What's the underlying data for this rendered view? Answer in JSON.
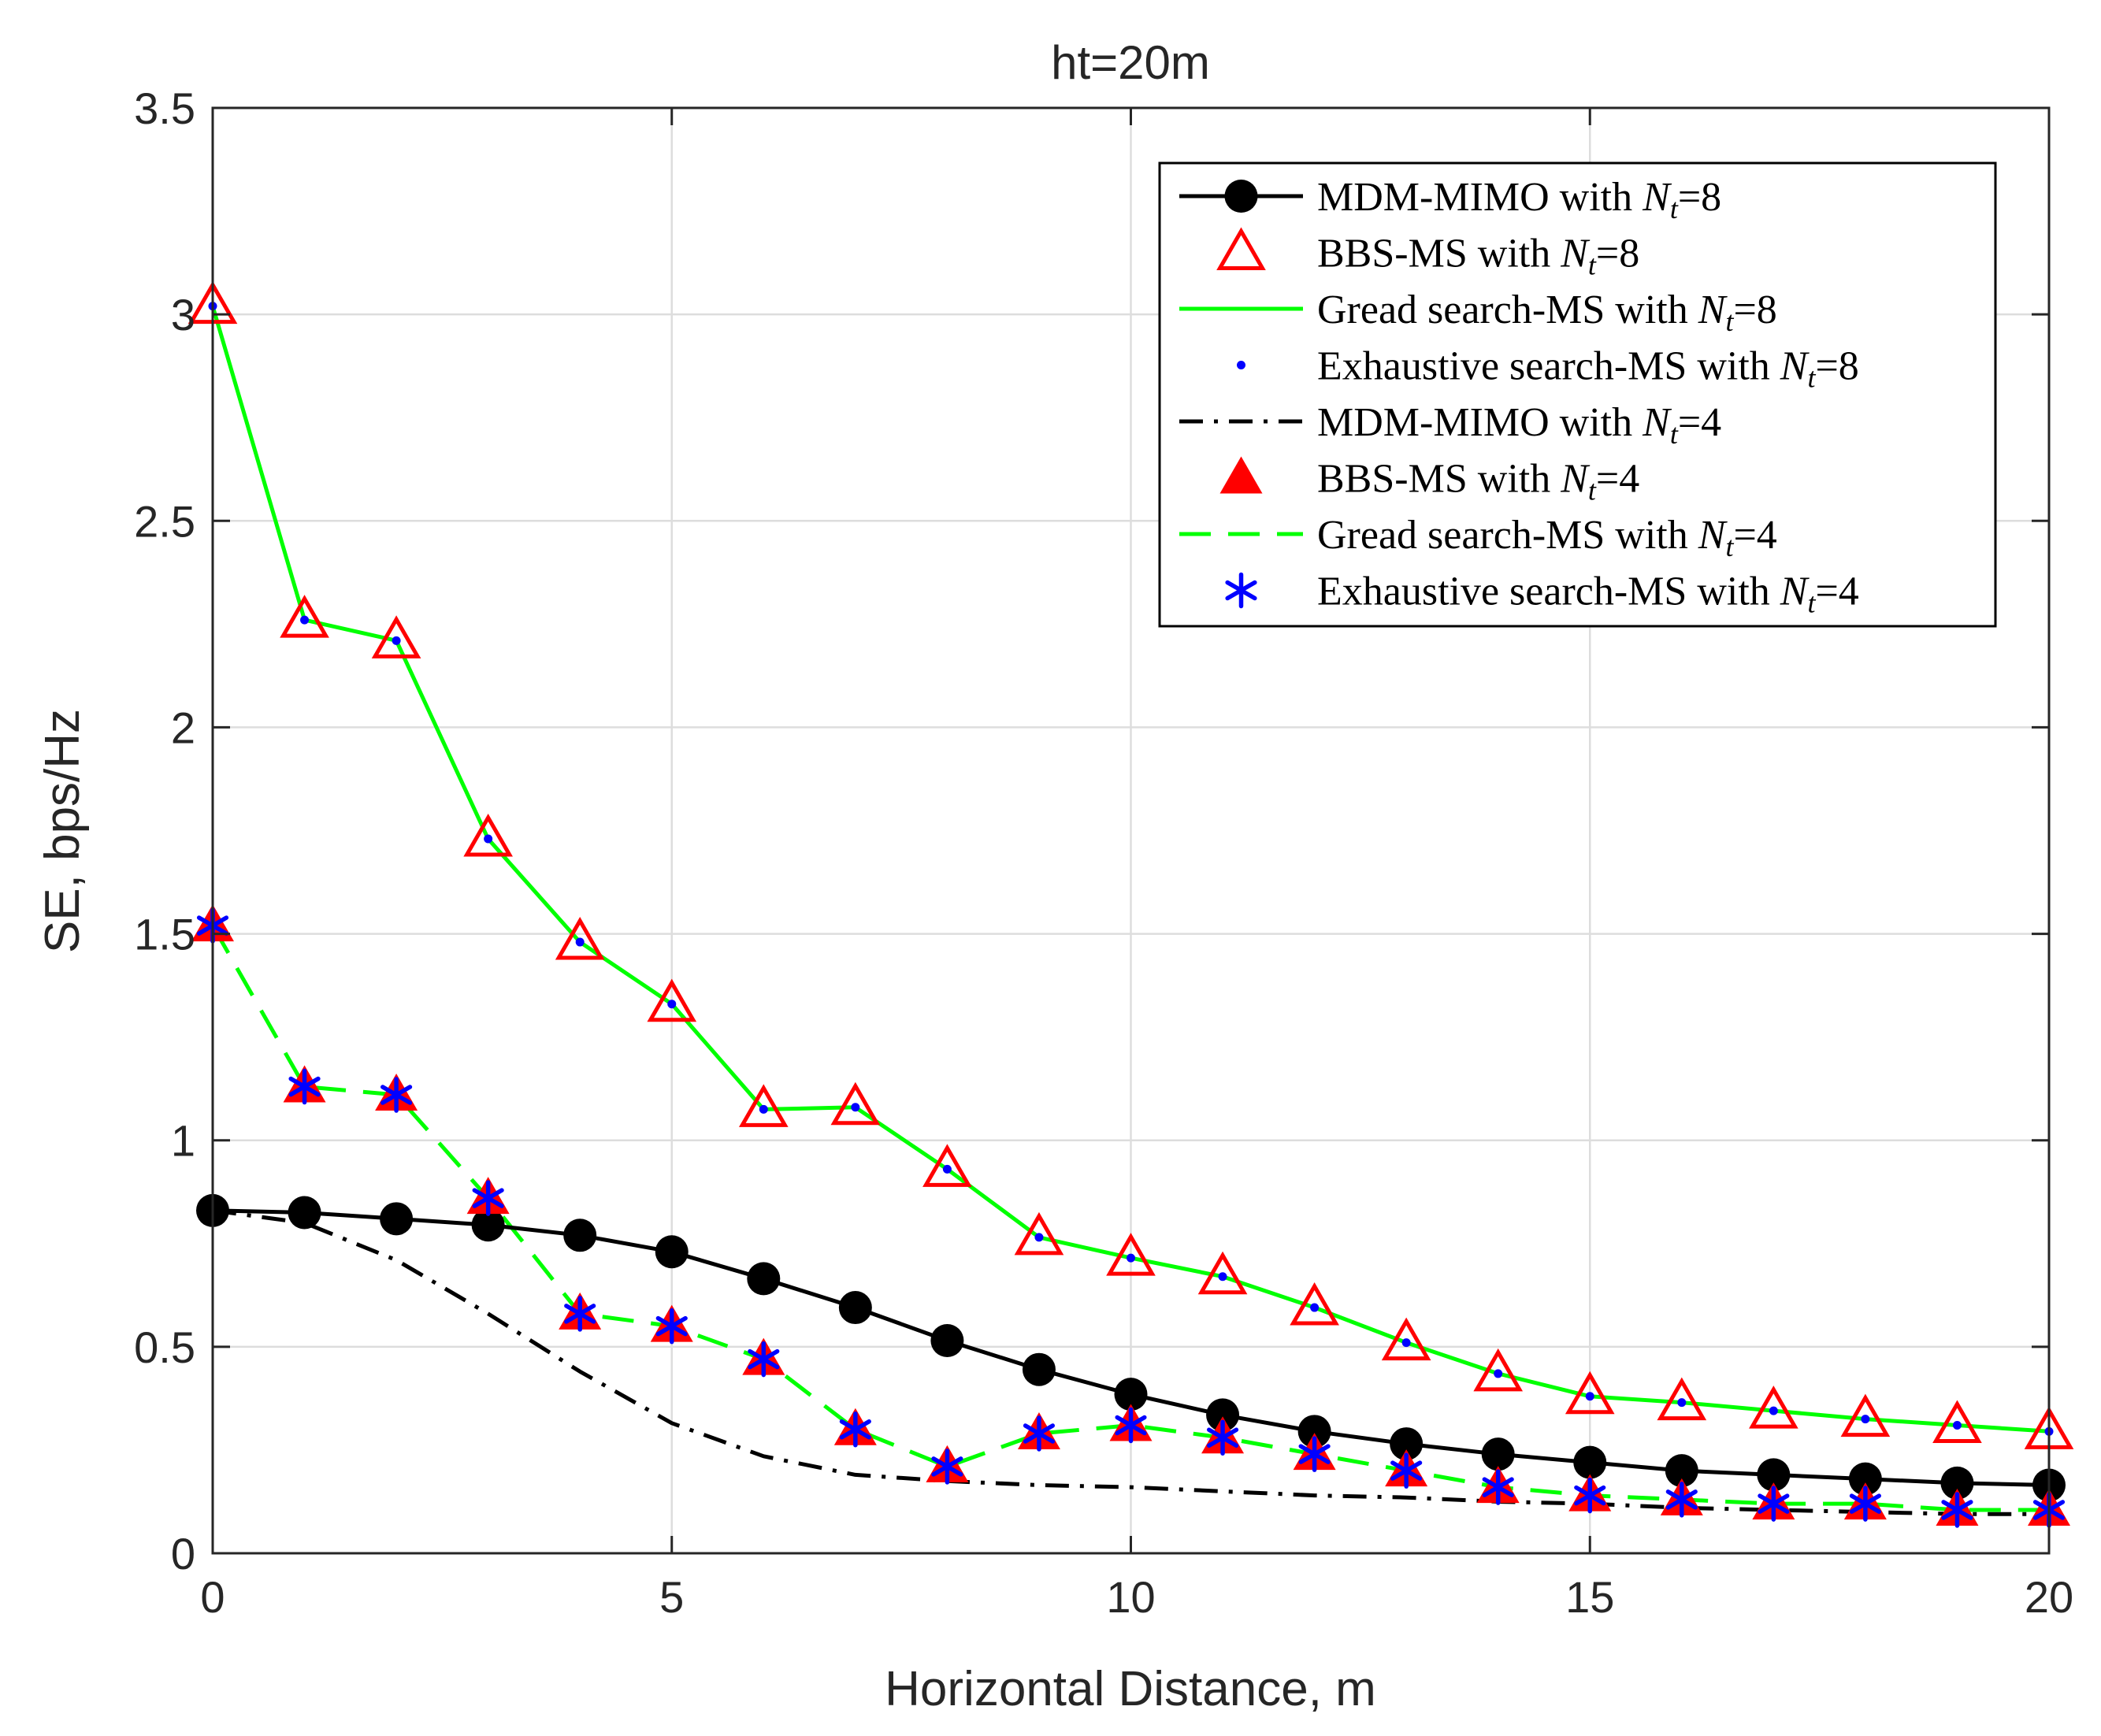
{
  "chart_data": {
    "type": "line",
    "title": "ht=20m",
    "xlabel": "Horizontal Distance, m",
    "ylabel": "SE, bps/Hz",
    "xlim": [
      0,
      20
    ],
    "ylim": [
      0,
      3.5
    ],
    "xticks": [
      0,
      5,
      10,
      15,
      20
    ],
    "xtick_labels": [
      "0",
      "5",
      "10",
      "15",
      "20"
    ],
    "yticks": [
      0,
      0.5,
      1,
      1.5,
      2,
      2.5,
      3,
      3.5
    ],
    "ytick_labels": [
      "0",
      "0.5",
      "1",
      "1.5",
      "2",
      "2.5",
      "3",
      "3.5"
    ],
    "grid": true,
    "legend_position": "top-right",
    "x": [
      0,
      1,
      2,
      3,
      4,
      5,
      6,
      7,
      8,
      9,
      10,
      11,
      12,
      13,
      14,
      15,
      16,
      17,
      18,
      19,
      20
    ],
    "series": [
      {
        "name": "MDM-MIMO with N_t=8",
        "legend_prefix": "MDM-MIMO with ",
        "legend_suffix": "=8",
        "color": "#000000",
        "line": "solid",
        "marker": "filled-circle",
        "values": [
          0.83,
          0.825,
          0.81,
          0.795,
          0.77,
          0.73,
          0.665,
          0.595,
          0.515,
          0.445,
          0.385,
          0.335,
          0.295,
          0.265,
          0.24,
          0.22,
          0.2,
          0.19,
          0.18,
          0.17,
          0.165
        ]
      },
      {
        "name": "BBS-MS with N_t=8",
        "legend_prefix": "BBS-MS with ",
        "legend_suffix": "=8",
        "color": "#ff0000",
        "line": "none",
        "marker": "open-triangle",
        "values": [
          3.02,
          2.26,
          2.21,
          1.73,
          1.48,
          1.33,
          1.075,
          1.08,
          0.93,
          0.765,
          0.715,
          0.67,
          0.595,
          0.51,
          0.435,
          0.38,
          0.365,
          0.345,
          0.325,
          0.31,
          0.295
        ]
      },
      {
        "name": "Gread search-MS with N_t=8",
        "legend_prefix": "Gread search-MS with ",
        "legend_suffix": "=8",
        "color": "#00ff00",
        "line": "solid",
        "marker": "none",
        "values": [
          3.02,
          2.26,
          2.21,
          1.73,
          1.48,
          1.33,
          1.075,
          1.08,
          0.93,
          0.765,
          0.715,
          0.67,
          0.595,
          0.51,
          0.435,
          0.38,
          0.365,
          0.345,
          0.325,
          0.31,
          0.295
        ]
      },
      {
        "name": "Exhaustive search-MS with N_t=8",
        "legend_prefix": "Exhaustive search-MS with ",
        "legend_suffix": "=8",
        "color": "#0000ff",
        "line": "none",
        "marker": "dot",
        "values": [
          3.02,
          2.26,
          2.21,
          1.73,
          1.48,
          1.33,
          1.075,
          1.08,
          0.93,
          0.765,
          0.715,
          0.67,
          0.595,
          0.51,
          0.435,
          0.38,
          0.365,
          0.345,
          0.325,
          0.31,
          0.295
        ]
      },
      {
        "name": "MDM-MIMO with N_t=4",
        "legend_prefix": "MDM-MIMO with ",
        "legend_suffix": "=4",
        "color": "#000000",
        "line": "dashdot",
        "marker": "none",
        "values": [
          0.83,
          0.8,
          0.71,
          0.58,
          0.44,
          0.315,
          0.235,
          0.19,
          0.175,
          0.165,
          0.16,
          0.15,
          0.14,
          0.135,
          0.125,
          0.12,
          0.11,
          0.105,
          0.1,
          0.095,
          0.095
        ]
      },
      {
        "name": "BBS-MS with N_t=4",
        "legend_prefix": "BBS-MS with ",
        "legend_suffix": "=4",
        "color": "#ff0000",
        "line": "none",
        "marker": "filled-triangle",
        "values": [
          1.52,
          1.13,
          1.11,
          0.86,
          0.58,
          0.55,
          0.47,
          0.3,
          0.21,
          0.29,
          0.31,
          0.28,
          0.24,
          0.2,
          0.16,
          0.14,
          0.13,
          0.12,
          0.12,
          0.105,
          0.105
        ]
      },
      {
        "name": "Gread search-MS with N_t=4",
        "legend_prefix": "Gread search-MS with ",
        "legend_suffix": "=4",
        "color": "#00ff00",
        "line": "dashed",
        "marker": "none",
        "values": [
          1.52,
          1.13,
          1.11,
          0.86,
          0.58,
          0.55,
          0.47,
          0.3,
          0.21,
          0.29,
          0.31,
          0.28,
          0.24,
          0.2,
          0.16,
          0.14,
          0.13,
          0.12,
          0.12,
          0.105,
          0.105
        ]
      },
      {
        "name": "Exhaustive search-MS with N_t=4",
        "legend_prefix": "Exhaustive search-MS with ",
        "legend_suffix": "=4",
        "color": "#0000ff",
        "line": "none",
        "marker": "asterisk",
        "values": [
          1.52,
          1.13,
          1.11,
          0.86,
          0.58,
          0.55,
          0.47,
          0.3,
          0.21,
          0.29,
          0.31,
          0.28,
          0.24,
          0.2,
          0.16,
          0.14,
          0.13,
          0.12,
          0.12,
          0.105,
          0.105
        ]
      }
    ],
    "legend_symbol_base": "N",
    "legend_symbol_sub": "t"
  }
}
